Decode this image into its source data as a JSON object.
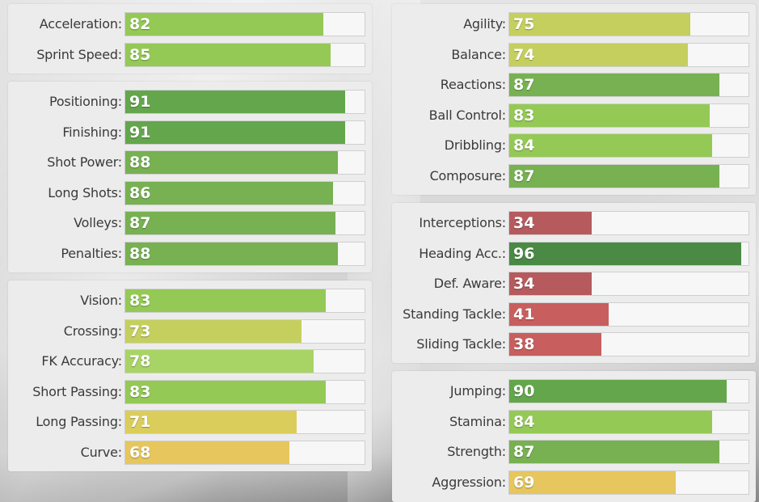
{
  "groups": [
    {
      "stats": [
        {
          "name": "Acceleration:",
          "value": 82
        },
        {
          "name": "Sprint Speed:",
          "value": 85
        }
      ]
    },
    {
      "stats": [
        {
          "name": "Positioning:",
          "value": 91
        },
        {
          "name": "Finishing:",
          "value": 91
        },
        {
          "name": "Shot Power:",
          "value": 88
        },
        {
          "name": "Long Shots:",
          "value": 86
        },
        {
          "name": "Volleys:",
          "value": 87
        },
        {
          "name": "Penalties:",
          "value": 88
        }
      ]
    },
    {
      "stats": [
        {
          "name": "Vision:",
          "value": 83
        },
        {
          "name": "Crossing:",
          "value": 73
        },
        {
          "name": "FK Accuracy:",
          "value": 78
        },
        {
          "name": "Short Passing:",
          "value": 83
        },
        {
          "name": "Long Passing:",
          "value": 71
        },
        {
          "name": "Curve:",
          "value": 68
        }
      ]
    },
    {
      "stats": [
        {
          "name": "Agility:",
          "value": 75
        },
        {
          "name": "Balance:",
          "value": 74
        },
        {
          "name": "Reactions:",
          "value": 87
        },
        {
          "name": "Ball Control:",
          "value": 83
        },
        {
          "name": "Dribbling:",
          "value": 84
        },
        {
          "name": "Composure:",
          "value": 87
        }
      ]
    },
    {
      "stats": [
        {
          "name": "Interceptions:",
          "value": 34
        },
        {
          "name": "Heading Acc.:",
          "value": 96
        },
        {
          "name": "Def. Aware:",
          "value": 34
        },
        {
          "name": "Standing Tackle:",
          "value": 41
        },
        {
          "name": "Sliding Tackle:",
          "value": 38
        }
      ]
    },
    {
      "stats": [
        {
          "name": "Jumping:",
          "value": 90
        },
        {
          "name": "Stamina:",
          "value": 84
        },
        {
          "name": "Strength:",
          "value": 87
        },
        {
          "name": "Aggression:",
          "value": 69
        }
      ]
    }
  ],
  "max_value": 99,
  "colors": {
    "very_high": "#4a8a45",
    "high": "#63a64c",
    "good": "#77b152",
    "above_avg": "#94c955",
    "mid_high": "#a8d465",
    "mid": "#c5cf5e",
    "mid_low": "#dbcd5b",
    "low_mid": "#e6c65d",
    "low": "#c85e5e",
    "very_low": "#b65a5e",
    "track": "#f7f7f7"
  }
}
